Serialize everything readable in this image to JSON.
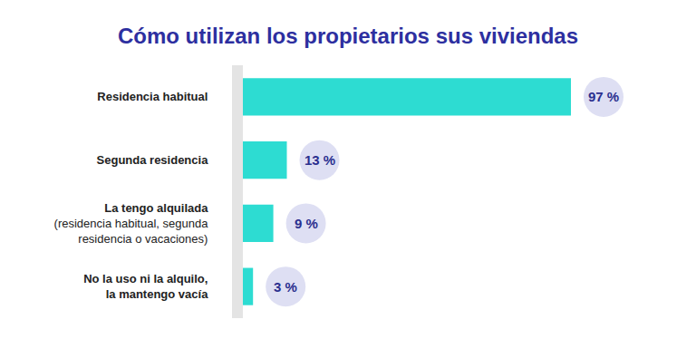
{
  "chart_data": {
    "type": "bar",
    "orientation": "horizontal",
    "title": "Cómo utilizan los propietarios sus viviendas",
    "categories": [
      "Residencia habitual",
      "Segunda residencia",
      "La tengo alquilada\n(residencia habitual, segunda\nresidencia o vacaciones)",
      "No la uso ni la alquilo,\nla mantengo vacía"
    ],
    "values": [
      97,
      13,
      9,
      3
    ],
    "value_labels": [
      "97 %",
      "13 %",
      "9 %",
      "3 %"
    ],
    "data_labels": true,
    "tick_labels": "y",
    "grid": false,
    "color": "#2ddcd2"
  }
}
